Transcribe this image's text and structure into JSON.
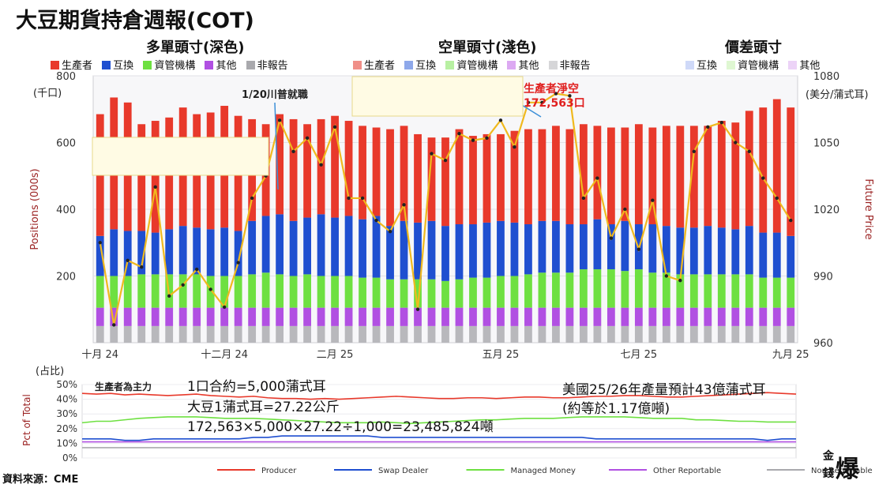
{
  "header": {
    "title": "大豆期貨持倉週報(COT)",
    "long_title": "多單頭寸(深色)",
    "short_title": "空單頭寸(淺色)",
    "spread_title": "價差頭寸"
  },
  "legend_groups": [
    {
      "items": [
        {
          "label": "生產者",
          "color": "#e8392b"
        },
        {
          "label": "互換",
          "color": "#1f4fd0"
        },
        {
          "label": "資管機構",
          "color": "#6ee041"
        },
        {
          "label": "其他",
          "color": "#b150e2"
        },
        {
          "label": "非報告",
          "color": "#a9a9ad"
        }
      ]
    },
    {
      "items": [
        {
          "label": "生產者",
          "color": "#f08f88"
        },
        {
          "label": "互換",
          "color": "#8ea8ea"
        },
        {
          "label": "資管機構",
          "color": "#b8f0a2"
        },
        {
          "label": "其他",
          "color": "#dca9f2"
        },
        {
          "label": "非報告",
          "color": "#d6d6d8"
        }
      ]
    },
    {
      "items": [
        {
          "label": "互換",
          "color": "#cfd9f8"
        },
        {
          "label": "資管機構",
          "color": "#dff7d2"
        },
        {
          "label": "其他",
          "color": "#ecd3f7"
        }
      ]
    }
  ],
  "annotations": {
    "trump": "1/20川普就職",
    "net_short_label": "生產者淨空",
    "net_short_value": "172,563口",
    "producer_main": "生產者為主力",
    "contract_line1": "1口合約=5,000蒲式耳",
    "contract_line2": "大豆1蒲式耳=27.22公斤",
    "contract_line3": "172,563×5,000×27.22÷1,000=23,485,824噸",
    "usda_line1": "美國25/26年產量預計43億蒲式耳",
    "usda_line2": "(約等於1.17億噸)",
    "source": "資料來源：CME",
    "logo_text": "金錢爆"
  },
  "chart_data": [
    {
      "type": "bar",
      "stacked": true,
      "left_unit": "(千口)",
      "ylabel": "Positions (000s)",
      "y2label": "Future Price",
      "right_unit": "(美分/蒲式耳)",
      "ylim": [
        0,
        800
      ],
      "y2lim": [
        960,
        1080
      ],
      "yticks": [
        200,
        400,
        600,
        800
      ],
      "y2ticks": [
        960,
        990,
        1020,
        1050,
        1080
      ],
      "grid": true,
      "x_labels": [
        {
          "label": "十月 24",
          "week": 0
        },
        {
          "label": "十二月 24",
          "week": 9
        },
        {
          "label": "二月 25",
          "week": 17
        },
        {
          "label": "五月 25",
          "week": 29
        },
        {
          "label": "七月 25",
          "week": 39
        },
        {
          "label": "九月 25",
          "week": 50
        }
      ],
      "categories": [
        0,
        1,
        2,
        3,
        4,
        5,
        6,
        7,
        8,
        9,
        10,
        11,
        12,
        13,
        14,
        15,
        16,
        17,
        18,
        19,
        20,
        21,
        22,
        23,
        24,
        25,
        26,
        27,
        28,
        29,
        30,
        31,
        32,
        33,
        34,
        35,
        36,
        37,
        38,
        39,
        40,
        41,
        42,
        43,
        44,
        45,
        46,
        47,
        48,
        49,
        50
      ],
      "series": [
        {
          "name": "生產者",
          "color": "#e8392b",
          "values": [
            365,
            395,
            385,
            320,
            335,
            335,
            355,
            340,
            350,
            365,
            345,
            305,
            275,
            300,
            305,
            280,
            285,
            305,
            285,
            280,
            265,
            290,
            285,
            265,
            250,
            265,
            285,
            265,
            265,
            260,
            275,
            285,
            275,
            285,
            285,
            300,
            280,
            290,
            280,
            300,
            290,
            300,
            305,
            305,
            300,
            320,
            320,
            345,
            375,
            400,
            385
          ]
        },
        {
          "name": "互換",
          "color": "#1f4fd0",
          "values": [
            120,
            140,
            135,
            130,
            125,
            135,
            145,
            140,
            140,
            145,
            135,
            160,
            170,
            180,
            165,
            170,
            185,
            175,
            180,
            175,
            185,
            160,
            175,
            170,
            175,
            165,
            165,
            160,
            165,
            165,
            160,
            150,
            155,
            155,
            145,
            135,
            150,
            135,
            150,
            135,
            145,
            140,
            140,
            140,
            145,
            140,
            135,
            145,
            135,
            135,
            125
          ]
        },
        {
          "name": "資管機構",
          "color": "#6ee041",
          "values": [
            95,
            95,
            95,
            100,
            100,
            100,
            100,
            100,
            95,
            95,
            95,
            100,
            105,
            100,
            95,
            100,
            95,
            95,
            95,
            90,
            90,
            85,
            85,
            85,
            85,
            80,
            85,
            90,
            90,
            95,
            95,
            100,
            105,
            105,
            105,
            115,
            115,
            115,
            110,
            115,
            105,
            105,
            100,
            100,
            100,
            100,
            100,
            100,
            90,
            90,
            90
          ]
        },
        {
          "name": "其他",
          "color": "#b150e2",
          "values": [
            55,
            55,
            55,
            55,
            55,
            55,
            55,
            55,
            55,
            55,
            55,
            55,
            55,
            55,
            55,
            55,
            55,
            55,
            55,
            55,
            55,
            55,
            55,
            55,
            55,
            55,
            55,
            55,
            55,
            55,
            55,
            55,
            55,
            55,
            55,
            55,
            55,
            55,
            55,
            55,
            55,
            55,
            55,
            55,
            55,
            55,
            55,
            55,
            55,
            55,
            55
          ]
        },
        {
          "name": "非報告",
          "color": "#b8b8bc",
          "values": [
            50,
            50,
            50,
            50,
            50,
            50,
            50,
            50,
            50,
            50,
            50,
            50,
            50,
            50,
            50,
            50,
            50,
            50,
            50,
            50,
            50,
            50,
            50,
            50,
            50,
            50,
            50,
            50,
            50,
            50,
            50,
            50,
            50,
            50,
            50,
            50,
            50,
            50,
            50,
            50,
            50,
            50,
            50,
            50,
            50,
            50,
            50,
            50,
            50,
            50,
            50
          ]
        }
      ],
      "price_line": {
        "color": "#f0b91e",
        "values": [
          1005,
          968,
          997,
          994,
          1030,
          981,
          986,
          993,
          984,
          976,
          996,
          1025,
          1035,
          1060,
          1046,
          1052,
          1040,
          1057,
          1025,
          1025,
          1015,
          1010,
          1022,
          975,
          1045,
          1042,
          1054,
          1051,
          1052,
          1060,
          1048,
          1068,
          1068,
          1072,
          1071,
          1025,
          1034,
          1007,
          1020,
          1002,
          1024,
          990,
          988,
          1046,
          1057,
          1059,
          1050,
          1046,
          1034,
          1025,
          1015
        ]
      }
    },
    {
      "type": "line",
      "left_unit": "(占比)",
      "ylabel": "Pct of Total",
      "ylim": [
        0,
        50
      ],
      "yticks": [
        0,
        10,
        20,
        30,
        40,
        50
      ],
      "ytick_labels": [
        "0%",
        "10%",
        "20%",
        "30%",
        "40%",
        "50%"
      ],
      "categories": [
        0,
        1,
        2,
        3,
        4,
        5,
        6,
        7,
        8,
        9,
        10,
        11,
        12,
        13,
        14,
        15,
        16,
        17,
        18,
        19,
        20,
        21,
        22,
        23,
        24,
        25,
        26,
        27,
        28,
        29,
        30,
        31,
        32,
        33,
        34,
        35,
        36,
        37,
        38,
        39,
        40,
        41,
        42,
        43,
        44,
        45,
        46,
        47,
        48,
        49,
        50
      ],
      "series": [
        {
          "name": "Producer",
          "color": "#e8392b",
          "values": [
            44,
            43.5,
            44,
            43,
            43.5,
            43,
            42.5,
            43,
            43.5,
            42.5,
            42,
            41.5,
            42,
            41,
            40.5,
            40.5,
            40,
            40.5,
            40,
            40.5,
            41,
            41.5,
            42,
            41.5,
            41,
            40.5,
            40.5,
            41,
            41,
            40.5,
            41,
            41.5,
            41.5,
            41,
            41,
            41.5,
            42,
            42,
            42.5,
            42.5,
            42,
            41.5,
            41.5,
            42,
            42.5,
            43,
            43.5,
            44,
            44.5,
            44,
            43.5
          ]
        },
        {
          "name": "Swap Dealer",
          "color": "#1f4fd0",
          "values": [
            13,
            13,
            13,
            12,
            12,
            13,
            13,
            13,
            13,
            13,
            13,
            13,
            14,
            14,
            15,
            15,
            15,
            15,
            15,
            15,
            15,
            14,
            14,
            14,
            14,
            14,
            14,
            14,
            14,
            14,
            14,
            14,
            14,
            14,
            14,
            14,
            13,
            13,
            13,
            13,
            13,
            13,
            13,
            13,
            13,
            13,
            13,
            13,
            12,
            13,
            13
          ]
        },
        {
          "name": "Managed Money",
          "color": "#6ee041",
          "values": [
            24,
            25,
            25,
            26,
            27,
            27.5,
            28,
            28,
            28,
            27.5,
            27,
            27,
            27,
            26.5,
            26,
            25.5,
            25,
            24.5,
            24,
            24,
            24,
            24.5,
            24,
            23.5,
            24,
            24.5,
            25,
            25.5,
            26,
            26,
            26.5,
            27,
            27,
            27,
            27.5,
            28,
            28,
            28,
            28,
            27.5,
            27,
            27,
            27,
            26,
            26,
            25.5,
            25,
            25,
            24.5,
            24.5,
            24.5
          ]
        },
        {
          "name": "Other Reportable",
          "color": "#b150e2",
          "values": [
            11,
            11,
            11,
            11,
            11,
            11,
            11,
            11,
            11,
            11,
            11,
            11,
            11,
            11,
            11,
            11,
            11,
            11,
            11,
            11,
            11,
            11,
            11,
            11,
            11,
            11,
            11,
            11,
            11,
            11,
            11,
            11,
            11,
            11,
            11,
            11,
            11,
            11,
            11,
            11,
            11,
            11,
            11,
            11,
            11,
            11,
            11,
            11,
            11,
            11,
            11
          ]
        },
        {
          "name": "Non Reportable",
          "color": "#a9a9ad",
          "values": [
            7,
            7,
            7,
            7,
            7,
            7,
            7,
            7,
            7,
            7,
            7,
            7,
            7,
            7,
            7,
            7,
            7,
            7,
            7,
            7,
            7,
            7,
            7,
            7,
            7,
            7,
            7,
            7,
            7,
            7,
            7,
            7,
            7,
            7,
            7,
            7,
            7,
            7,
            7,
            7,
            7,
            7,
            7,
            7,
            7,
            7,
            7,
            7,
            7,
            7,
            7
          ]
        }
      ]
    }
  ]
}
